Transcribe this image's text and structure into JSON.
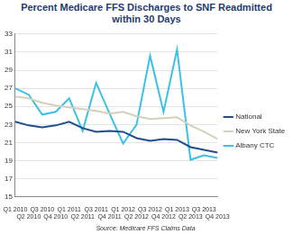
{
  "chart_data": {
    "type": "line",
    "title": "Percent Medicare FFS Discharges to SNF Readmitted within 30 Days",
    "source": "Source: Medicare FFS Claims Data",
    "categories": [
      "Q1 2010",
      "Q2 2010",
      "Q3 2010",
      "Q4 2010",
      "Q1 2011",
      "Q2 2011",
      "Q3 2011",
      "Q4 2011",
      "Q1 2012",
      "Q2 2012",
      "Q3 2012",
      "Q4 2012",
      "Q1 2013",
      "Q2 2013",
      "Q3 2013",
      "Q4 2013"
    ],
    "series": [
      {
        "name": "National",
        "color": "#1f4e8c",
        "values": [
          23.3,
          22.9,
          22.7,
          22.9,
          23.3,
          22.6,
          22.2,
          22.3,
          22.2,
          21.5,
          21.2,
          21.4,
          21.3,
          20.5,
          20.2,
          19.9
        ]
      },
      {
        "name": "New York State",
        "color": "#d3d0bc",
        "values": [
          26.1,
          25.9,
          25.4,
          25.1,
          24.9,
          24.7,
          24.5,
          24.2,
          24.4,
          23.9,
          23.6,
          23.7,
          23.8,
          22.9,
          22.2,
          21.4
        ]
      },
      {
        "name": "Albany CTC",
        "color": "#3cc0e8",
        "values": [
          27.0,
          26.3,
          24.1,
          24.4,
          25.9,
          22.3,
          27.6,
          24.2,
          20.9,
          23.0,
          30.6,
          24.4,
          31.3,
          19.1,
          19.6,
          19.3
        ]
      }
    ],
    "ylim": [
      15,
      33
    ],
    "yticks": [
      15,
      17,
      19,
      21,
      23,
      25,
      27,
      29,
      31,
      33
    ],
    "grid": true,
    "legend": "right"
  }
}
